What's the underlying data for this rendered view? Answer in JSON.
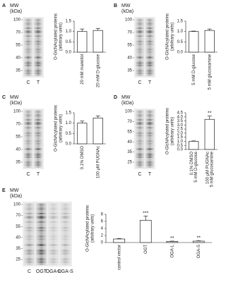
{
  "chart_data": [
    {
      "type": "bar",
      "panel": "A",
      "mw_title": "MW",
      "mw_unit": "(kDa)",
      "mw_markers": [
        100,
        70,
        55,
        40,
        35
      ],
      "lanes": [
        "C",
        "T"
      ],
      "ylabel": [
        "O-GlcNAcylated proteins",
        "(arbitrary units)"
      ],
      "categories": [
        [
          "20 mM mannitol"
        ],
        [
          "20 mM D-glucose"
        ]
      ],
      "values": [
        1.0,
        1.05
      ],
      "errors": [
        0.12,
        0.1
      ],
      "color": "#ffffff",
      "ylim": [
        0,
        1.5
      ],
      "yticks": [
        {
          "value": 0,
          "label": "0.0"
        },
        0.5,
        {
          "value": 1,
          "label": "1.0"
        },
        1.5
      ]
    },
    {
      "type": "bar",
      "panel": "B",
      "mw_title": "MW",
      "mw_unit": "(kDa)",
      "mw_markers": [
        100,
        70,
        55,
        40,
        35
      ],
      "lanes": [
        "C",
        "T"
      ],
      "ylabel": [
        "O-GlcNAcylated proteins",
        "(arbitrary units)"
      ],
      "categories": [
        [
          "5 mM D-glucose"
        ],
        [
          "5 mM glucosamine"
        ]
      ],
      "values": [
        1.0,
        1.05
      ],
      "errors": [
        0.02,
        0.07
      ],
      "color": "#ffffff",
      "ylim": [
        0,
        1.5
      ],
      "yticks": [
        {
          "value": 0,
          "label": "0.0"
        },
        0.5,
        {
          "value": 1,
          "label": "1.0"
        },
        1.5
      ]
    },
    {
      "type": "bar",
      "panel": "C",
      "mw_title": "MW",
      "mw_unit": "(kDa)",
      "mw_markers": [
        100,
        70,
        55,
        40,
        35
      ],
      "lanes": [
        "C",
        "T"
      ],
      "ylabel": [
        "O-GlcNAcylated proteins",
        "(arbitrary units)"
      ],
      "categories": [
        [
          "0.1% DMSO"
        ],
        [
          "100 μM PUGNAc"
        ]
      ],
      "values": [
        1.0,
        1.25
      ],
      "errors": [
        0.1,
        0.1
      ],
      "color": "#ffffff",
      "ylim": [
        0,
        1.5
      ],
      "yticks": [
        {
          "value": 0,
          "label": "0.0"
        },
        0.5,
        {
          "value": 1,
          "label": "1.0"
        },
        1.5
      ]
    },
    {
      "type": "bar",
      "panel": "D",
      "mw_title": "MW",
      "mw_unit": "(kDa)",
      "mw_markers": [
        100,
        70,
        55,
        40,
        35,
        25
      ],
      "lanes": [
        "C",
        "T"
      ],
      "ylabel": [
        "O-GlcNAcylated proteins",
        "(arbitrary units)"
      ],
      "categories": [
        [
          "0.1% DMSO",
          "5 mM D-glucose"
        ],
        [
          "100 μM PUGNAc",
          "5 mM glucosamine"
        ]
      ],
      "values": [
        1.0,
        3.7
      ],
      "errors": [
        0.05,
        0.4
      ],
      "annotations": [
        null,
        "**"
      ],
      "color": "#ffffff",
      "ylim": [
        0,
        4.5
      ],
      "yticks": [
        {
          "value": 0,
          "label": "0.0"
        },
        0.5,
        {
          "value": 1,
          "label": "1.0"
        },
        1.5,
        {
          "value": 2,
          "label": "2.0"
        },
        2.5,
        {
          "value": 3,
          "label": "3.0"
        },
        3.5,
        {
          "value": 4,
          "label": "4.0"
        },
        4.5
      ]
    },
    {
      "type": "bar",
      "panel": "E",
      "mw_title": "MW",
      "mw_unit": "(kDa)",
      "mw_markers": [
        100,
        70,
        55,
        40,
        35,
        25
      ],
      "lanes": [
        "C",
        "OGT",
        "OGA-L",
        "OGA-S"
      ],
      "ylabel": [
        "O-GlcNAcylated proteins",
        "(arbitrary units)"
      ],
      "categories": [
        [
          "control vector"
        ],
        [
          "OGT"
        ],
        [
          "OGA-L"
        ],
        [
          "OGA-S"
        ]
      ],
      "values": [
        1.0,
        6.3,
        0.3,
        0.4
      ],
      "errors": [
        0.15,
        1.2,
        0.1,
        0.1
      ],
      "annotations": [
        null,
        "***",
        "**",
        "**"
      ],
      "color": "#ffffff",
      "ylim": [
        0,
        8
      ],
      "yticks": [
        0,
        2,
        4,
        6,
        8
      ]
    }
  ]
}
